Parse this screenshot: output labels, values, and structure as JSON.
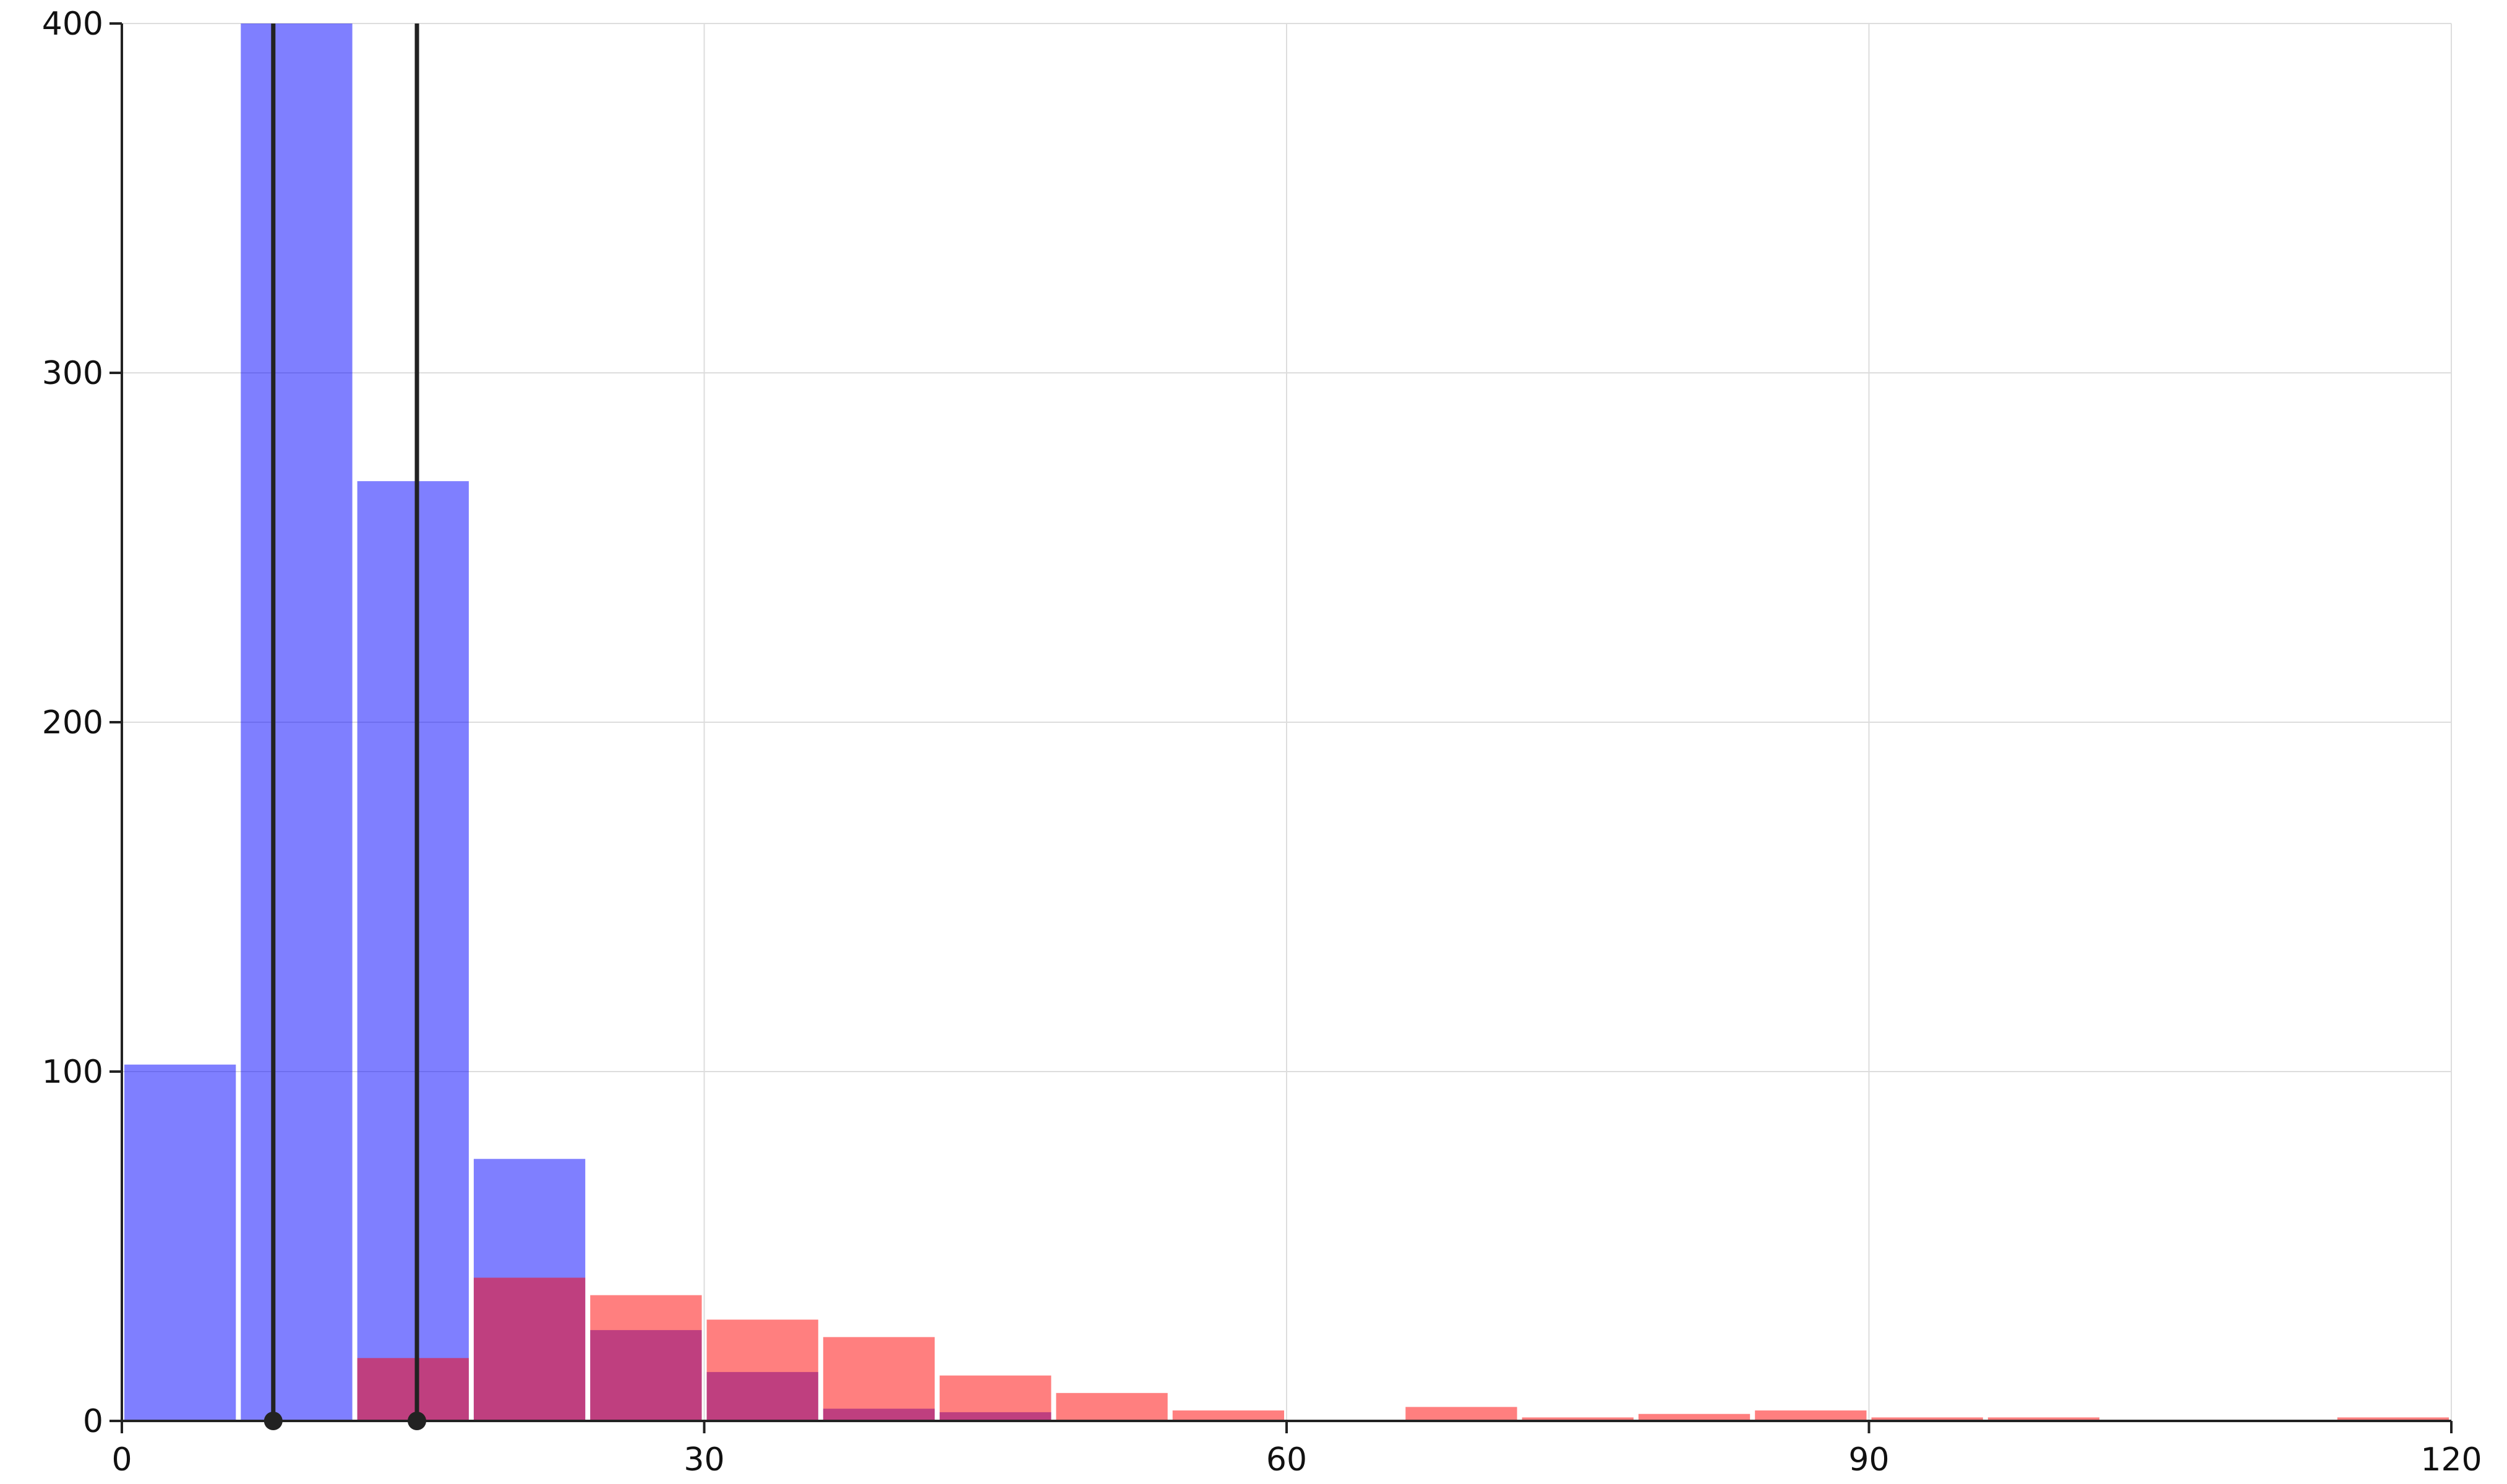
{
  "chart_data": {
    "type": "bar",
    "subtype": "overlapping-histogram",
    "title": "",
    "xlabel": "",
    "ylabel": "",
    "xlim": [
      0,
      120
    ],
    "ylim": [
      0,
      400
    ],
    "xticks": [
      0,
      30,
      60,
      90,
      120
    ],
    "yticks": [
      0,
      100,
      200,
      300,
      400
    ],
    "grid": true,
    "legend": "none",
    "bin_width": 6,
    "series": [
      {
        "color": "#0000ff",
        "opacity": 0.5,
        "bins": [
          {
            "x0": 0,
            "x1": 6,
            "value": 102
          },
          {
            "x0": 6,
            "x1": 12,
            "value": 400
          },
          {
            "x0": 12,
            "x1": 18,
            "value": 269
          },
          {
            "x0": 18,
            "x1": 24,
            "value": 75
          },
          {
            "x0": 24,
            "x1": 30,
            "value": 26
          },
          {
            "x0": 30,
            "x1": 36,
            "value": 14
          },
          {
            "x0": 36,
            "x1": 42,
            "value": 3.5
          },
          {
            "x0": 42,
            "x1": 48,
            "value": 2.5
          }
        ]
      },
      {
        "color": "#ff0000",
        "opacity": 0.5,
        "bins": [
          {
            "x0": 12,
            "x1": 18,
            "value": 18
          },
          {
            "x0": 18,
            "x1": 24,
            "value": 41
          },
          {
            "x0": 24,
            "x1": 30,
            "value": 36
          },
          {
            "x0": 30,
            "x1": 36,
            "value": 29
          },
          {
            "x0": 36,
            "x1": 42,
            "value": 24
          },
          {
            "x0": 42,
            "x1": 48,
            "value": 13
          },
          {
            "x0": 48,
            "x1": 54,
            "value": 8
          },
          {
            "x0": 54,
            "x1": 60,
            "value": 3
          },
          {
            "x0": 66,
            "x1": 72,
            "value": 4
          },
          {
            "x0": 72,
            "x1": 78,
            "value": 1
          },
          {
            "x0": 78,
            "x1": 84,
            "value": 2
          },
          {
            "x0": 84,
            "x1": 90,
            "value": 3
          },
          {
            "x0": 90,
            "x1": 96,
            "value": 1
          },
          {
            "x0": 96,
            "x1": 102,
            "value": 1
          },
          {
            "x0": 114,
            "x1": 120,
            "value": 1
          }
        ]
      }
    ],
    "reference_lines": [
      {
        "x": 7.8,
        "color": "#222222"
      },
      {
        "x": 15.2,
        "color": "#222222"
      }
    ],
    "colors": {
      "axis": "#222222",
      "grid": "#dddddd",
      "gap": "#ffffff"
    }
  }
}
